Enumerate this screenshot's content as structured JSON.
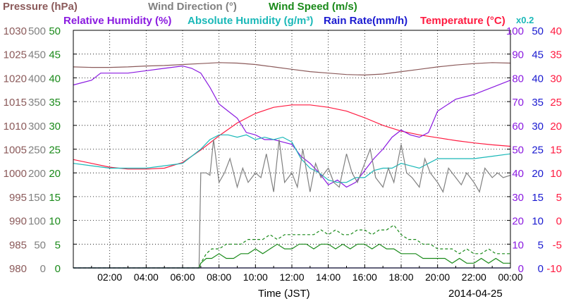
{
  "chart_data": {
    "type": "line",
    "xlabel": "Time (JST)",
    "date_label": "2014-04-25",
    "x_ticks": [
      "02:00",
      "04:00",
      "06:00",
      "08:00",
      "10:00",
      "12:00",
      "14:00",
      "16:00",
      "18:00",
      "20:00",
      "22:00",
      "00:00"
    ],
    "xlim_hours": [
      0,
      24
    ],
    "grid": true,
    "legend": [
      {
        "label": "Pressure (hPa)",
        "color": "#8b5a5a"
      },
      {
        "label": "Wind Direction (°)",
        "color": "#808080"
      },
      {
        "label": "Wind Speed (m/s)",
        "color": "#1a8a1a"
      },
      {
        "label": "Relative Humidity (%)",
        "color": "#8a1ae0"
      },
      {
        "label": "Absolute Humidity (g/m³)",
        "color": "#1ab8b8"
      },
      {
        "label": "Rain Rate(mm/h)",
        "color": "#1a1ad0"
      },
      {
        "label": "Temperature (°C)",
        "color": "#ff1a40"
      },
      {
        "label": "x0.2",
        "color": "#1ab8b8"
      }
    ],
    "axes": {
      "pressure": {
        "ticks": [
          "980",
          "985",
          "990",
          "995",
          "1000",
          "1005",
          "1010",
          "1015",
          "1020",
          "1025",
          "1030"
        ],
        "ylim": [
          980,
          1030
        ],
        "color": "#8b5a5a"
      },
      "wind_direction": {
        "ticks": [
          "0",
          "50",
          "100",
          "150",
          "200",
          "250",
          "300",
          "350",
          "400",
          "450",
          "500"
        ],
        "ylim": [
          0,
          500
        ],
        "color": "#808080"
      },
      "wind_speed": {
        "ticks": [
          "0",
          "5",
          "10",
          "15",
          "20",
          "25",
          "30",
          "35",
          "40",
          "45",
          "50"
        ],
        "ylim": [
          0,
          50
        ],
        "color": "#1a8a1a"
      },
      "relative_humidity": {
        "ticks": [
          "0",
          "10",
          "20",
          "30",
          "40",
          "50",
          "60",
          "70",
          "80",
          "90",
          "100"
        ],
        "ylim": [
          0,
          100
        ],
        "color": "#8a1ae0"
      },
      "rain_rate": {
        "ticks": [
          "0",
          "5",
          "10",
          "15",
          "20",
          "25",
          "30",
          "35",
          "40",
          "45",
          "50"
        ],
        "ylim": [
          0,
          50
        ],
        "color": "#1a1ad0"
      },
      "temperature": {
        "ticks": [
          "-10",
          "-5",
          "0",
          "5",
          "10",
          "15",
          "20",
          "25",
          "30",
          "35",
          "40"
        ],
        "ylim": [
          -10,
          40
        ],
        "color": "#ff1a40"
      }
    },
    "series": [
      {
        "name": "Pressure (hPa)",
        "axis": "pressure",
        "color": "#8b5a5a",
        "x": [
          0,
          1,
          2,
          3,
          4,
          5,
          6,
          7,
          8,
          9,
          10,
          11,
          12,
          13,
          14,
          15,
          16,
          17,
          18,
          19,
          20,
          21,
          22,
          23,
          24
        ],
        "y": [
          1022.3,
          1022.2,
          1022.2,
          1022.3,
          1022.5,
          1022.6,
          1022.8,
          1023.0,
          1023.2,
          1023.1,
          1022.8,
          1022.3,
          1021.8,
          1021.3,
          1021.0,
          1020.7,
          1020.6,
          1020.8,
          1021.3,
          1021.8,
          1022.3,
          1022.7,
          1023.0,
          1023.2,
          1023.1
        ]
      },
      {
        "name": "Temperature (°C)",
        "axis": "temperature",
        "color": "#ff1a40",
        "x": [
          0,
          1,
          2,
          3,
          4,
          5,
          6,
          7,
          8,
          9,
          10,
          11,
          12,
          13,
          14,
          15,
          16,
          17,
          18,
          19,
          20,
          21,
          22,
          23,
          24
        ],
        "y": [
          12.8,
          12.0,
          11.2,
          10.8,
          10.8,
          11.0,
          12.2,
          14.8,
          17.8,
          20.5,
          22.5,
          23.8,
          24.3,
          24.3,
          23.8,
          23.0,
          21.6,
          20.0,
          18.8,
          18.0,
          17.4,
          16.8,
          16.3,
          15.9,
          15.6
        ]
      },
      {
        "name": "Relative Humidity (%)",
        "axis": "relative_humidity",
        "color": "#8a1ae0",
        "x": [
          0,
          1,
          1.5,
          2,
          3,
          4,
          5,
          6,
          6.5,
          7,
          7.5,
          8,
          8.5,
          9,
          9.5,
          10,
          10.5,
          11,
          11.5,
          12,
          12.5,
          13,
          13.5,
          14,
          14.5,
          15,
          15.5,
          16,
          16.5,
          17,
          17.5,
          18,
          18.5,
          19,
          19.5,
          20,
          21,
          22,
          23,
          24
        ],
        "y": [
          77,
          79,
          82,
          82,
          82,
          83,
          84,
          85,
          84,
          82,
          76,
          69,
          66,
          63,
          57,
          56,
          54,
          54,
          53,
          52,
          47,
          44,
          40,
          35,
          37,
          34,
          36,
          41,
          46,
          50,
          55,
          58,
          56,
          55,
          57,
          66,
          71,
          73,
          76,
          79
        ]
      },
      {
        "name": "Absolute Humidity (g/m³)",
        "axis": "relative_humidity",
        "color": "#1ab8b8",
        "x": [
          0,
          1,
          2,
          3,
          4,
          5,
          6,
          6.5,
          7,
          7.5,
          8,
          8.5,
          9,
          9.5,
          10,
          10.5,
          11,
          11.5,
          12,
          12.5,
          13,
          13.5,
          14,
          14.5,
          15,
          15.5,
          16,
          16.5,
          17,
          17.5,
          18,
          18.5,
          19,
          19.5,
          20,
          21,
          22,
          23,
          24
        ],
        "y": [
          44,
          43,
          42,
          42,
          42,
          43,
          44,
          47,
          50,
          54,
          56,
          56,
          55,
          56,
          54,
          55,
          54,
          55,
          53,
          46,
          42,
          40,
          37,
          36,
          36,
          38,
          38,
          41,
          42,
          42,
          44,
          43,
          42,
          44,
          46,
          46,
          46,
          47,
          48
        ]
      },
      {
        "name": "Wind Direction (°)",
        "axis": "wind_direction",
        "color": "#808080",
        "x": [
          0,
          6.9,
          7.0,
          7.3,
          7.5,
          7.7,
          8,
          8.3,
          8.6,
          9,
          9.3,
          9.6,
          10,
          10.3,
          10.6,
          11,
          11.3,
          11.6,
          12,
          12.3,
          12.6,
          13,
          13.3,
          13.6,
          14,
          14.3,
          14.6,
          15,
          15.3,
          15.6,
          16,
          16.3,
          16.6,
          17,
          17.3,
          17.6,
          18,
          18.3,
          18.6,
          19,
          19.3,
          19.6,
          20,
          20.3,
          20.6,
          21,
          21.3,
          21.6,
          22,
          22.3,
          22.6,
          23,
          23.3,
          23.6,
          24
        ],
        "y": [
          0,
          0,
          200,
          200,
          195,
          270,
          180,
          200,
          230,
          170,
          210,
          180,
          200,
          190,
          240,
          160,
          270,
          180,
          200,
          170,
          250,
          160,
          220,
          190,
          210,
          180,
          170,
          240,
          200,
          180,
          220,
          250,
          190,
          170,
          210,
          180,
          260,
          200,
          190,
          170,
          230,
          200,
          180,
          160,
          210,
          190,
          175,
          200,
          180,
          160,
          210,
          190,
          200,
          190,
          195
        ]
      },
      {
        "name": "Wind Speed (m/s)",
        "axis": "wind_speed",
        "color": "#1a8a1a",
        "x": [
          0,
          6.9,
          7.0,
          7.3,
          7.6,
          8,
          8.4,
          8.8,
          9.2,
          9.6,
          10,
          10.4,
          10.8,
          11.2,
          11.6,
          12,
          12.4,
          12.8,
          13.2,
          13.6,
          14,
          14.4,
          14.8,
          15.2,
          15.6,
          16,
          16.4,
          16.8,
          17.2,
          17.6,
          18,
          18.4,
          18.8,
          19.2,
          19.6,
          20,
          20.4,
          20.8,
          21.2,
          21.6,
          22,
          22.4,
          22.8,
          23.2,
          23.6,
          24
        ],
        "y": [
          0,
          0,
          1,
          2,
          2,
          3,
          2,
          2,
          3,
          3,
          4,
          3,
          4,
          5,
          4,
          4,
          5,
          5,
          4,
          5,
          5,
          4,
          5,
          4,
          5,
          5,
          4,
          5,
          4,
          4,
          3,
          3,
          3,
          2,
          2,
          2,
          2,
          1,
          2,
          1,
          1,
          2,
          1,
          2,
          1,
          1
        ]
      },
      {
        "name": "Wind Speed gust (m/s)",
        "axis": "wind_speed",
        "color": "#1a8a1a",
        "dashed": true,
        "x": [
          0,
          6.9,
          7.0,
          7.3,
          7.6,
          8,
          8.4,
          8.8,
          9.2,
          9.6,
          10,
          10.4,
          10.8,
          11.2,
          11.6,
          12,
          12.4,
          12.8,
          13.2,
          13.6,
          14,
          14.4,
          14.8,
          15.2,
          15.6,
          16,
          16.4,
          16.8,
          17.2,
          17.6,
          18,
          18.4,
          18.8,
          19.2,
          19.6,
          20,
          20.4,
          20.8,
          21.2,
          21.6,
          22,
          22.4,
          22.8,
          23.2,
          23.6,
          24
        ],
        "y": [
          0,
          0,
          1,
          3,
          4,
          4,
          5,
          5,
          5,
          6,
          6,
          6,
          7,
          6,
          7,
          7,
          7,
          7,
          7,
          8,
          7,
          8,
          7,
          7,
          8,
          8,
          7,
          8,
          8,
          9,
          7,
          6,
          6,
          5,
          5,
          4,
          4,
          4,
          3,
          4,
          3,
          3,
          4,
          3,
          3,
          3
        ]
      },
      {
        "name": "Rain Rate(mm/h)",
        "axis": "rain_rate",
        "color": "#1a1ad0",
        "x": [
          0,
          24
        ],
        "y": [
          0,
          0
        ]
      }
    ]
  }
}
